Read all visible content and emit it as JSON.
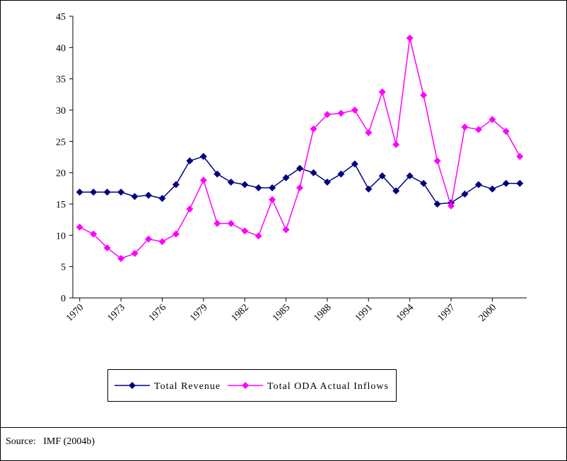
{
  "chart_data": {
    "type": "line",
    "x": [
      1970,
      1971,
      1972,
      1973,
      1974,
      1975,
      1976,
      1977,
      1978,
      1979,
      1980,
      1981,
      1982,
      1983,
      1984,
      1985,
      1986,
      1987,
      1988,
      1989,
      1990,
      1991,
      1992,
      1993,
      1994,
      1995,
      1996,
      1997,
      1998,
      1999,
      2000,
      2001,
      2002
    ],
    "xlim": [
      1969.5,
      2002.5
    ],
    "xticks": [
      1970,
      1973,
      1976,
      1979,
      1982,
      1985,
      1988,
      1991,
      1994,
      1997,
      2000
    ],
    "ylim": [
      0,
      45
    ],
    "yticks": [
      0,
      5,
      10,
      15,
      20,
      25,
      30,
      35,
      40,
      45
    ],
    "grid": false,
    "legend": "bottom",
    "series": [
      {
        "name": "Total Revenue",
        "color": "#000080",
        "values": [
          16.9,
          16.9,
          16.9,
          16.9,
          16.2,
          16.4,
          15.9,
          18.1,
          21.9,
          22.6,
          19.8,
          18.5,
          18.1,
          17.6,
          17.6,
          19.2,
          20.7,
          20,
          18.5,
          19.8,
          21.4,
          17.4,
          19.5,
          17.1,
          19.5,
          18.3,
          15,
          15.2,
          16.6,
          18.1,
          17.4,
          18.3,
          18.3
        ]
      },
      {
        "name": "Total ODA Actual Inflows",
        "color": "#ff00ff",
        "values": [
          11.3,
          10.2,
          8,
          6.3,
          7.1,
          9.4,
          9,
          10.2,
          14.2,
          18.8,
          11.9,
          11.9,
          10.7,
          9.9,
          15.7,
          10.9,
          17.6,
          27,
          29.3,
          29.5,
          30,
          26.4,
          32.9,
          24.5,
          41.5,
          32.4,
          21.9,
          14.7,
          27.3,
          26.9,
          28.5,
          26.6,
          22.6
        ]
      }
    ]
  },
  "source": "Source:   IMF (2004b)"
}
